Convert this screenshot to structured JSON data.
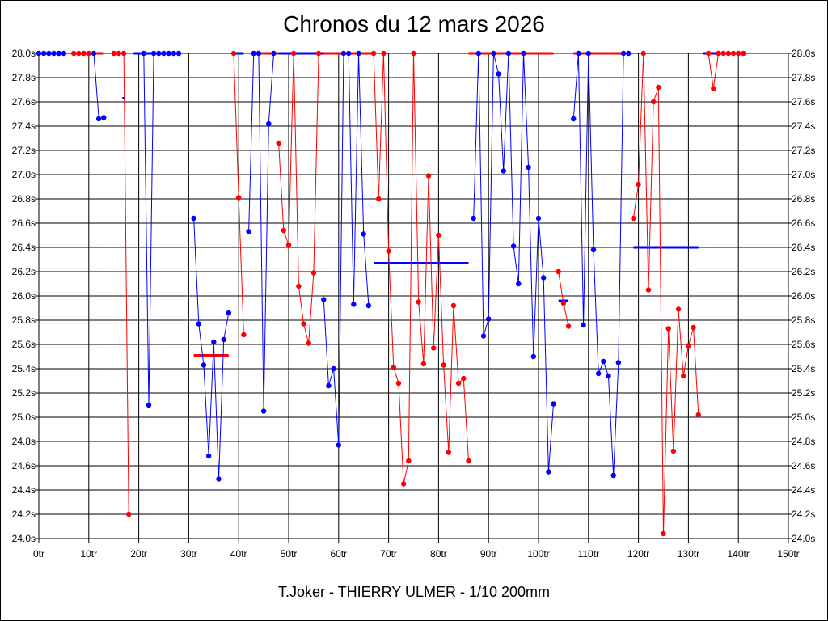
{
  "chart_data": {
    "type": "line",
    "title": "Chronos du 12 mars 2026",
    "subtitle": "T.Joker - THIERRY ULMER - 1/10 200mm",
    "x_unit": "tr",
    "y_unit": "s",
    "xlim": [
      0,
      150
    ],
    "ylim": [
      24.0,
      28.0
    ],
    "x_ticks": [
      0,
      10,
      20,
      30,
      40,
      50,
      60,
      70,
      80,
      90,
      100,
      110,
      120,
      130,
      140,
      150
    ],
    "y_ticks": [
      24.0,
      24.2,
      24.4,
      24.6,
      24.8,
      25.0,
      25.2,
      25.4,
      25.6,
      25.8,
      26.0,
      26.2,
      26.4,
      26.6,
      26.8,
      27.0,
      27.2,
      27.4,
      27.6,
      27.8,
      28.0
    ],
    "grid": true,
    "colors": {
      "blue": "#0000ff",
      "red": "#ff0000",
      "grid": "#000000"
    },
    "series": [
      {
        "name": "s1",
        "color": "#0000ff",
        "points": [
          [
            0,
            28
          ],
          [
            1,
            28
          ],
          [
            2,
            28
          ],
          [
            3,
            28
          ],
          [
            4,
            28
          ],
          [
            5,
            28
          ]
        ]
      },
      {
        "name": "s2",
        "color": "#ff0000",
        "points": [
          [
            7,
            28
          ],
          [
            8,
            28
          ],
          [
            9,
            28
          ],
          [
            10,
            28
          ]
        ]
      },
      {
        "name": "s3",
        "color": "#0000ff",
        "points": [
          [
            11,
            28
          ],
          [
            12,
            27.46
          ],
          [
            13,
            27.47
          ]
        ]
      },
      {
        "name": "s4",
        "color": "#ff0000",
        "points": [
          [
            15,
            28
          ],
          [
            16,
            28
          ],
          [
            17,
            28
          ],
          [
            18,
            24.2
          ]
        ]
      },
      {
        "name": "s5",
        "color": "#0000ff",
        "points": [
          [
            21,
            28
          ],
          [
            22,
            25.1
          ],
          [
            23,
            28
          ],
          [
            24,
            28
          ],
          [
            25,
            28
          ],
          [
            26,
            28
          ],
          [
            27,
            28
          ],
          [
            28,
            28
          ]
        ]
      },
      {
        "name": "s6",
        "color": "#0000ff",
        "points": [
          [
            31,
            26.64
          ],
          [
            32,
            25.77
          ],
          [
            33,
            25.43
          ],
          [
            34,
            24.68
          ],
          [
            35,
            25.62
          ],
          [
            36,
            24.49
          ],
          [
            37,
            25.64
          ],
          [
            38,
            25.86
          ]
        ]
      },
      {
        "name": "s7",
        "color": "#ff0000",
        "points": [
          [
            39,
            28
          ],
          [
            40,
            26.81
          ],
          [
            41,
            25.68
          ]
        ]
      },
      {
        "name": "s8",
        "color": "#0000ff",
        "points": [
          [
            42,
            26.53
          ],
          [
            43,
            28
          ],
          [
            44,
            28
          ],
          [
            45,
            25.05
          ],
          [
            46,
            27.42
          ],
          [
            47,
            28
          ]
        ]
      },
      {
        "name": "s9",
        "color": "#ff0000",
        "points": [
          [
            48,
            27.26
          ],
          [
            49,
            26.54
          ],
          [
            50,
            26.42
          ],
          [
            51,
            28
          ],
          [
            52,
            26.08
          ],
          [
            53,
            25.77
          ],
          [
            54,
            25.61
          ],
          [
            55,
            26.19
          ],
          [
            56,
            28
          ]
        ]
      },
      {
        "name": "s10",
        "color": "#0000ff",
        "points": [
          [
            57,
            25.97
          ],
          [
            58,
            25.26
          ],
          [
            59,
            25.4
          ],
          [
            60,
            24.77
          ],
          [
            61,
            28
          ],
          [
            62,
            28
          ],
          [
            63,
            25.93
          ],
          [
            64,
            28
          ],
          [
            65,
            26.51
          ],
          [
            66,
            25.92
          ]
        ]
      },
      {
        "name": "s11",
        "color": "#ff0000",
        "points": [
          [
            67,
            28
          ],
          [
            68,
            26.8
          ],
          [
            69,
            28
          ],
          [
            70,
            26.37
          ],
          [
            71,
            25.41
          ],
          [
            72,
            25.28
          ],
          [
            73,
            24.45
          ],
          [
            74,
            24.64
          ],
          [
            75,
            28
          ],
          [
            76,
            25.95
          ],
          [
            77,
            25.44
          ],
          [
            78,
            26.99
          ],
          [
            79,
            25.57
          ],
          [
            80,
            26.5
          ],
          [
            81,
            25.43
          ],
          [
            82,
            24.71
          ],
          [
            83,
            25.92
          ],
          [
            84,
            25.28
          ],
          [
            85,
            25.32
          ],
          [
            86,
            24.64
          ]
        ]
      },
      {
        "name": "s12",
        "color": "#0000ff",
        "points": [
          [
            87,
            26.64
          ],
          [
            88,
            28
          ],
          [
            89,
            25.67
          ],
          [
            90,
            25.81
          ],
          [
            91,
            28
          ],
          [
            92,
            27.83
          ],
          [
            93,
            27.03
          ],
          [
            94,
            28
          ],
          [
            95,
            26.41
          ],
          [
            96,
            26.1
          ],
          [
            97,
            28
          ],
          [
            98,
            27.06
          ],
          [
            99,
            25.5
          ],
          [
            100,
            26.64
          ],
          [
            101,
            26.15
          ],
          [
            102,
            24.55
          ],
          [
            103,
            25.11
          ]
        ]
      },
      {
        "name": "s13",
        "color": "#ff0000",
        "points": [
          [
            104,
            26.2
          ],
          [
            105,
            25.94
          ],
          [
            106,
            25.75
          ]
        ]
      },
      {
        "name": "s14",
        "color": "#0000ff",
        "points": [
          [
            107,
            27.46
          ],
          [
            108,
            28
          ],
          [
            109,
            25.76
          ],
          [
            110,
            28
          ],
          [
            111,
            26.38
          ],
          [
            112,
            25.36
          ],
          [
            113,
            25.46
          ],
          [
            114,
            25.34
          ],
          [
            115,
            24.52
          ],
          [
            116,
            25.45
          ],
          [
            117,
            28
          ],
          [
            118,
            28
          ]
        ]
      },
      {
        "name": "s15",
        "color": "#ff0000",
        "points": [
          [
            119,
            26.64
          ],
          [
            120,
            26.92
          ],
          [
            121,
            28
          ],
          [
            122,
            26.05
          ],
          [
            123,
            27.6
          ],
          [
            124,
            27.72
          ],
          [
            125,
            24.04
          ],
          [
            126,
            25.73
          ],
          [
            127,
            24.72
          ],
          [
            128,
            25.89
          ],
          [
            129,
            25.34
          ],
          [
            130,
            25.59
          ],
          [
            131,
            25.74
          ],
          [
            132,
            25.02
          ]
        ]
      },
      {
        "name": "s16",
        "color": "#ff0000",
        "points": [
          [
            134,
            28
          ],
          [
            135,
            27.71
          ],
          [
            136,
            28
          ],
          [
            137,
            28
          ],
          [
            138,
            28
          ],
          [
            139,
            28
          ],
          [
            140,
            28
          ],
          [
            141,
            28
          ]
        ]
      }
    ],
    "averages": [
      {
        "color": "#0000ff",
        "from": 0,
        "to": 5,
        "value": 28.0
      },
      {
        "color": "#ff0000",
        "from": 6.5,
        "to": 13,
        "value": 28.0
      },
      {
        "color": "#0000ff",
        "from": 16.7,
        "to": 17.3,
        "value": 27.63
      },
      {
        "color": "#0000ff",
        "from": 19,
        "to": 28,
        "value": 28.0
      },
      {
        "color": "#ff0000",
        "from": 31,
        "to": 38,
        "value": 25.51
      },
      {
        "color": "#0000ff",
        "from": 39,
        "to": 41,
        "value": 28.0
      },
      {
        "color": "#ff0000",
        "from": 44,
        "to": 57,
        "value": 28.0
      },
      {
        "color": "#0000ff",
        "from": 48,
        "to": 57,
        "value": 28.0
      },
      {
        "color": "#ff0000",
        "from": 57,
        "to": 67,
        "value": 28.0
      },
      {
        "color": "#0000ff",
        "from": 67,
        "to": 86,
        "value": 26.27
      },
      {
        "color": "#ff0000",
        "from": 86,
        "to": 103,
        "value": 28.0
      },
      {
        "color": "#0000ff",
        "from": 104,
        "to": 106,
        "value": 25.96
      },
      {
        "color": "#ff0000",
        "from": 107,
        "to": 117,
        "value": 28.0
      },
      {
        "color": "#0000ff",
        "from": 119,
        "to": 132,
        "value": 26.4
      },
      {
        "color": "#0000ff",
        "from": 133,
        "to": 141,
        "value": 28.0
      }
    ]
  }
}
